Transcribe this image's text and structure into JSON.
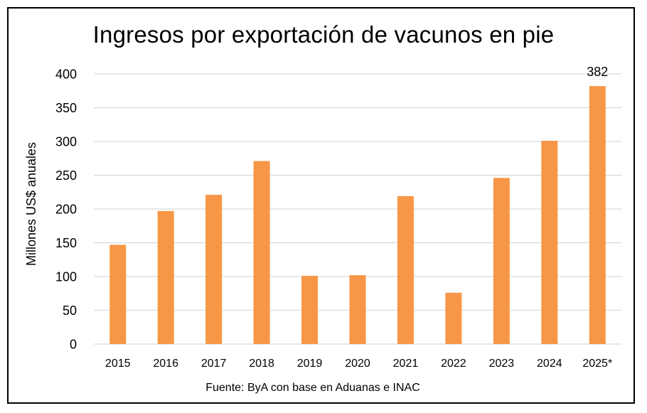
{
  "chart_data": {
    "type": "bar",
    "title": "Ingresos por exportación de vacunos en pie",
    "ylabel": "Millones US$ anuales",
    "xlabel": "",
    "categories": [
      "2015",
      "2016",
      "2017",
      "2018",
      "2019",
      "2020",
      "2021",
      "2022",
      "2023",
      "2024",
      "2025*"
    ],
    "values": [
      147,
      197,
      221,
      271,
      101,
      102,
      219,
      76,
      246,
      301,
      382
    ],
    "data_labels": [
      {
        "index": 10,
        "text": "382"
      }
    ],
    "ylim": [
      0,
      400
    ],
    "yticks": [
      0,
      50,
      100,
      150,
      200,
      250,
      300,
      350,
      400
    ],
    "grid": true,
    "bar_color": "#F79646",
    "grid_color": "#D9D9D9",
    "source": "Fuente: ByA con base en Aduanas e INAC"
  }
}
